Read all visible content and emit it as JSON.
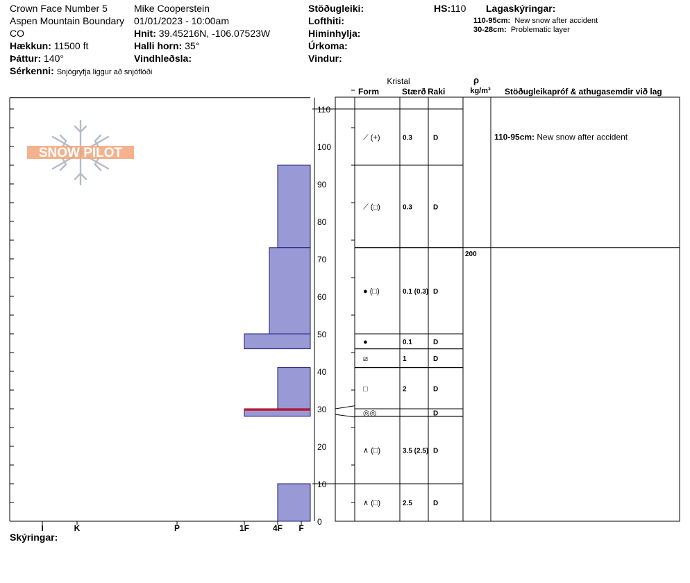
{
  "header": {
    "location_name": "Crown Face Number 5",
    "area": "Aspen Mountain Boundary",
    "state": "CO",
    "observer": "Mike Cooperstein",
    "datetime": "01/01/2023 - 10:00am",
    "elevation_label": "Hækkun:",
    "elevation": "11500 ft",
    "aspect_label": "Þáttur:",
    "aspect": "140°",
    "coords_label": "Hnit:",
    "coords": "39.45216N, -106.07523W",
    "slope_label": "Halli horn:",
    "slope": "35°",
    "wind_loading_label": "Vindhleðsla:",
    "features_label": "Sérkenni:",
    "features": "Snjógryfja liggur að snjóflóði",
    "stability_label": "Stöðugleiki:",
    "sky_label": "Lofthiti:",
    "air_label": "Himinhylja:",
    "precip_label": "Úrkoma:",
    "wind_label": "Vindur:",
    "hs_label": "HS:",
    "hs": "110",
    "layer_notes_label": "Lagaskýringar:",
    "layer_notes": [
      {
        "range": "110-95cm:",
        "text": "New snow after accident"
      },
      {
        "range": "30-28cm:",
        "text": "Problematic layer"
      }
    ],
    "notes_label": "Skýringar:"
  },
  "logo_text": "SNOW PILOT",
  "table": {
    "crystal_header": "Kristal",
    "form_header": "Form",
    "size_header": "Stærð",
    "moisture_header": "Raki",
    "density_header": "ρ",
    "density_unit": "kg/m³",
    "comments_header": "Stöðugleikapróf & athugasemdir við lag",
    "comments": [
      {
        "range": "110-95cm:",
        "text": "New snow after accident",
        "at": 102.5
      }
    ],
    "densities": [
      {
        "value": "200",
        "at": 73
      }
    ]
  },
  "colors": {
    "hardness_fill": "#9999d6",
    "weak_layer": "#e00000",
    "logo_orange": "#f2a47a",
    "logo_grey": "#b4bcc6"
  },
  "chart_data": {
    "type": "snow_profile",
    "y_ticks": [
      0,
      10,
      20,
      30,
      40,
      50,
      60,
      70,
      80,
      90,
      100,
      110
    ],
    "ylim": [
      0,
      113
    ],
    "hardness_scale": [
      {
        "label": "I",
        "value": 1
      },
      {
        "label": "K",
        "value": 2
      },
      {
        "label": "P",
        "value": 3
      },
      {
        "label": "1F",
        "value": 4
      },
      {
        "label": "4F",
        "value": 5
      },
      {
        "label": "F",
        "value": 6
      }
    ],
    "weak_layer": {
      "top": 30,
      "bottom": 29.5
    },
    "layers": [
      {
        "top": 110,
        "bottom": 95,
        "hardness": 6.25,
        "form": "⟋ (+)",
        "size": "0.3",
        "moisture": "D"
      },
      {
        "top": 95,
        "bottom": 73,
        "hardness": 5,
        "form": "⟋ (□)",
        "size": "0.3",
        "moisture": "D"
      },
      {
        "top": 73,
        "bottom": 50,
        "hardness": 4.75,
        "form": "● (□)",
        "size": "0.1 (0.3)",
        "moisture": "D"
      },
      {
        "top": 50,
        "bottom": 46,
        "hardness": 4,
        "form": "●",
        "size": "0.1",
        "moisture": "D"
      },
      {
        "top": 46,
        "bottom": 41,
        "hardness": 6.25,
        "form": "⧄",
        "size": "1",
        "moisture": "D"
      },
      {
        "top": 41,
        "bottom": 30,
        "hardness": 5,
        "form": "□",
        "size": "2",
        "moisture": "D"
      },
      {
        "top": 30,
        "bottom": 28,
        "hardness": 4,
        "form": "◎◎",
        "size": "",
        "moisture": "D"
      },
      {
        "top": 28,
        "bottom": 10,
        "hardness": 6.25,
        "form": "∧ (□)",
        "size": "3.5 (2.5)",
        "moisture": "D"
      },
      {
        "top": 10,
        "bottom": 0,
        "hardness": 5,
        "form": "∧ (□)",
        "size": "2.5",
        "moisture": "D"
      }
    ]
  }
}
